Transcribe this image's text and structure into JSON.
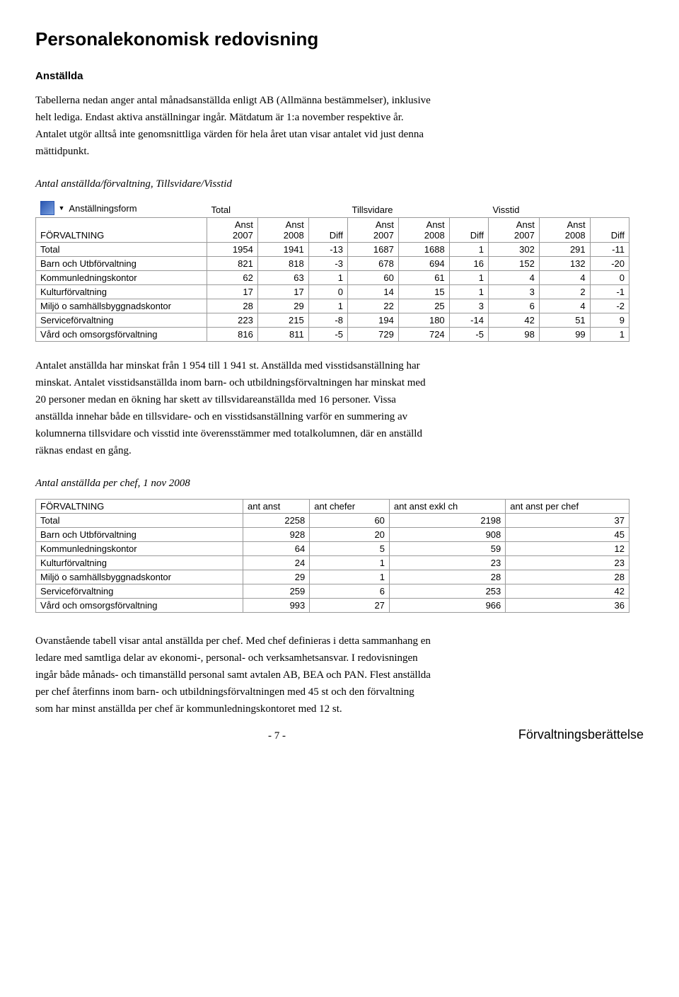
{
  "title": "Personalekonomisk redovisning",
  "section1": {
    "heading": "Anställda",
    "p1": "Tabellerna nedan anger antal månadsanställda enligt AB (Allmänna bestämmelser), inklusive helt lediga. Endast aktiva anställningar ingår. Mätdatum är 1:a november respektive år. Antalet utgör alltså inte genomsnittliga värden för hela året utan visar antalet vid just denna mättidpunkt.",
    "caption1": "Antal anställda/förvaltning, Tillsvidare/Visstid"
  },
  "table1": {
    "cube_label": "Anställningsform",
    "group_headers": [
      "Total",
      "Tillsvidare",
      "Visstid"
    ],
    "row_label": "FÖRVALTNING",
    "col_sub": [
      "Anst 2007",
      "Anst 2008",
      "Diff"
    ],
    "rows": [
      {
        "name": "Total",
        "vals": [
          1954,
          1941,
          -13,
          1687,
          1688,
          1,
          302,
          291,
          -11
        ]
      },
      {
        "name": "Barn och Utbförvaltning",
        "vals": [
          821,
          818,
          -3,
          678,
          694,
          16,
          152,
          132,
          -20
        ]
      },
      {
        "name": "Kommunledningskontor",
        "vals": [
          62,
          63,
          1,
          60,
          61,
          1,
          4,
          4,
          0
        ]
      },
      {
        "name": "Kulturförvaltning",
        "vals": [
          17,
          17,
          0,
          14,
          15,
          1,
          3,
          2,
          -1
        ]
      },
      {
        "name": "Miljö o samhällsbyggnadskontor",
        "vals": [
          28,
          29,
          1,
          22,
          25,
          3,
          6,
          4,
          -2
        ]
      },
      {
        "name": "Serviceförvaltning",
        "vals": [
          223,
          215,
          -8,
          194,
          180,
          -14,
          42,
          51,
          9
        ]
      },
      {
        "name": "Vård och omsorgsförvaltning",
        "vals": [
          816,
          811,
          -5,
          729,
          724,
          -5,
          98,
          99,
          1
        ]
      }
    ]
  },
  "mid_paragraph": "Antalet anställda har minskat från 1 954 till 1 941 st. Anställda med visstidsanställning har minskat. Antalet visstidsanställda inom barn- och utbildningsförvaltningen har minskat med 20 personer medan en ökning har skett av tillsvidareanställda med 16 personer. Vissa anställda innehar både en tillsvidare- och en visstidsanställning varför en summering av kolumnerna tillsvidare och visstid inte överensstämmer med totalkolumnen, där en anställd räknas endast en gång.",
  "caption2": "Antal anställda per chef, 1 nov 2008",
  "table2": {
    "headers": [
      "FÖRVALTNING",
      "ant anst",
      "ant chefer",
      "ant anst exkl ch",
      "ant anst per chef"
    ],
    "rows": [
      {
        "name": "Total",
        "vals": [
          2258,
          60,
          2198,
          37
        ]
      },
      {
        "name": "Barn och Utbförvaltning",
        "vals": [
          928,
          20,
          908,
          45
        ]
      },
      {
        "name": "Kommunledningskontor",
        "vals": [
          64,
          5,
          59,
          12
        ]
      },
      {
        "name": "Kulturförvaltning",
        "vals": [
          24,
          1,
          23,
          23
        ]
      },
      {
        "name": "Miljö o samhällsbyggnadskontor",
        "vals": [
          29,
          1,
          28,
          28
        ]
      },
      {
        "name": "Serviceförvaltning",
        "vals": [
          259,
          6,
          253,
          42
        ]
      },
      {
        "name": "Vård och omsorgsförvaltning",
        "vals": [
          993,
          27,
          966,
          36
        ]
      }
    ]
  },
  "bottom_paragraph": "Ovanstående tabell visar antal anställda per chef. Med chef definieras i detta sammanhang en ledare med samtliga delar av ekonomi-, personal- och verksamhetsansvar. I redovisningen ingår både månads- och timanställd personal samt avtalen AB, BEA och PAN. Flest anställda per chef återfinns inom barn- och utbildningsförvaltningen med 45 st och den förvaltning som har minst anställda per chef är kommunledningskontoret med 12 st.",
  "footer": {
    "page": "- 7 -",
    "label": "Förvaltningsberättelse"
  }
}
